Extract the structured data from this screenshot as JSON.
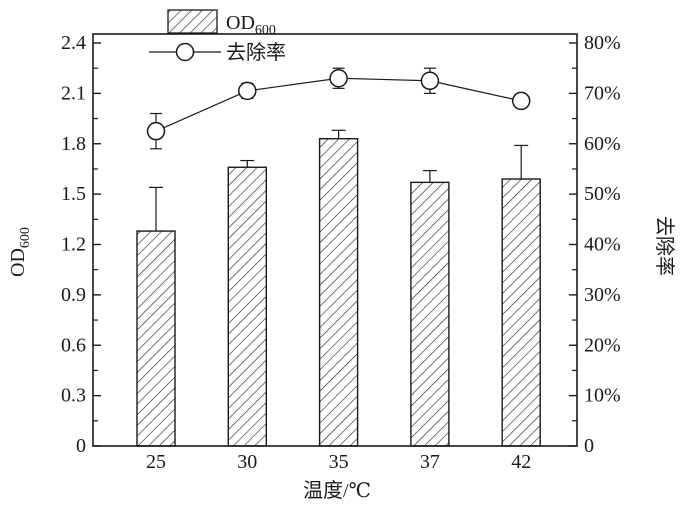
{
  "chart_data": {
    "type": "bar+line dual-axis",
    "categories": [
      "25",
      "30",
      "35",
      "37",
      "42"
    ],
    "series": [
      {
        "name": "OD600",
        "display": {
          "base": "OD",
          "sub": "600"
        },
        "type": "bar",
        "axis": "left",
        "values": [
          1.28,
          1.66,
          1.83,
          1.57,
          1.59
        ],
        "errors_plus": [
          0.26,
          0.04,
          0.05,
          0.07,
          0.2
        ]
      },
      {
        "name": "去除率",
        "type": "line",
        "axis": "right",
        "values": [
          62.5,
          70.5,
          73.0,
          72.5,
          68.5
        ],
        "errors": [
          3.5,
          1.5,
          2.0,
          2.5,
          0.5
        ]
      }
    ],
    "left_axis": {
      "label_base": "OD",
      "label_sub": "600",
      "min": 0,
      "max": 2.4,
      "major_step": 0.3,
      "minor_step": 0.15,
      "tick_labels": [
        "0",
        "0.3",
        "0.6",
        "0.9",
        "1.2",
        "1.5",
        "1.8",
        "2.1",
        "2.4"
      ]
    },
    "right_axis": {
      "label": "去除率",
      "min": 0,
      "max": 80,
      "major_step": 10,
      "minor_step": 5,
      "tick_labels": [
        "0",
        "10%",
        "20%",
        "30%",
        "40%",
        "50%",
        "60%",
        "70%",
        "80%"
      ]
    },
    "x_axis": {
      "label": "温度/℃",
      "tick_labels": [
        "25",
        "30",
        "35",
        "37",
        "42"
      ]
    },
    "legend": [
      {
        "swatch": "hatched-bar-swatch",
        "label_base": "OD",
        "label_sub": "600"
      },
      {
        "swatch": "line-circle-swatch",
        "label": "去除率"
      }
    ],
    "layout_hints": {
      "grid": false,
      "legend_position": "top-inside-left",
      "marker": "open-circle",
      "bar_fill": "diagonal-hatch"
    },
    "colors": {
      "stroke": "#1a1a1a",
      "background": "#ffffff",
      "marker_fill": "#ffffff"
    }
  }
}
